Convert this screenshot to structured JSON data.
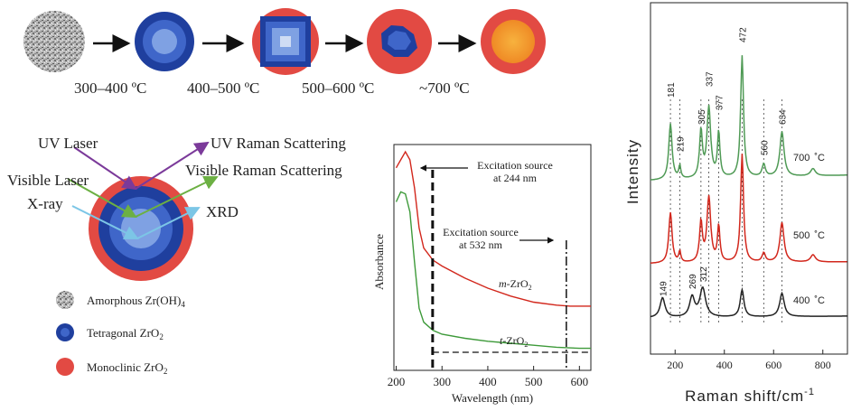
{
  "colors": {
    "tetragonal_dark": "#1f3f9e",
    "tetragonal_mid": "#3f66c9",
    "tetragonal_light": "#7fa1e3",
    "monoclinic": "#e24a43",
    "orange_core": "#f39a2a",
    "uv_arrow": "#7b3a9a",
    "visible_arrow": "#6cb043",
    "xray_arrow": "#7cc6e6",
    "green_series": "#4f9a55",
    "red_series": "#d2271c",
    "black_series": "#222222"
  },
  "phase_sequence": {
    "steps": [
      "300–400 ºC",
      "400–500 ºC",
      "500–600 ºC",
      "~700 ºC"
    ],
    "stages": [
      "amorphous",
      "tetragonal",
      "mixed-square",
      "mixed-blob",
      "monoclinic-core"
    ]
  },
  "probe_diagram": {
    "uv_laser": "UV Laser",
    "uv_raman": "UV Raman Scattering",
    "visible_laser": "Visible Laser",
    "visible_raman": "Visible Raman Scattering",
    "xray": "X-ray",
    "xrd": "XRD"
  },
  "legend": {
    "amorphous": {
      "pre": "Amorphous Zr(OH)",
      "sub": "4"
    },
    "tetragonal": {
      "pre": "Tetragonal ZrO",
      "sub": "2"
    },
    "monoclinic": {
      "pre": "Monoclinic ZrO",
      "sub": "2"
    }
  },
  "chart_data": [
    {
      "type": "line",
      "xlabel": "Wavelength (nm)",
      "ylabel": "Absorbance",
      "xlim": [
        195,
        625
      ],
      "xticks": [
        200,
        300,
        400,
        500,
        600
      ],
      "tick_labels": [
        "200",
        "300",
        "400",
        "500",
        "600"
      ],
      "series": [
        {
          "name": "m-ZrO2",
          "label_pre": "m",
          "label_mid": "-ZrO",
          "label_sub": "2",
          "x": [
            200,
            210,
            220,
            230,
            240,
            250,
            260,
            280,
            300,
            350,
            400,
            450,
            500,
            550,
            580,
            600,
            625
          ],
          "y": [
            0.92,
            0.96,
            1.0,
            0.96,
            0.82,
            0.62,
            0.52,
            0.46,
            0.43,
            0.37,
            0.32,
            0.28,
            0.25,
            0.235,
            0.23,
            0.23,
            0.23
          ]
        },
        {
          "name": "t-ZrO2",
          "label_pre": "t",
          "label_mid": "-ZrO",
          "label_sub": "2",
          "x": [
            200,
            210,
            220,
            230,
            240,
            250,
            260,
            280,
            300,
            350,
            400,
            450,
            500,
            550,
            600,
            625
          ],
          "y": [
            0.75,
            0.8,
            0.79,
            0.7,
            0.45,
            0.22,
            0.15,
            0.11,
            0.09,
            0.07,
            0.055,
            0.045,
            0.035,
            0.025,
            0.02,
            0.02
          ]
        }
      ],
      "annotations": {
        "exc244": {
          "line1": "Excitation source",
          "line2": "at 244 nm",
          "x": 244
        },
        "exc532": {
          "line1": "Excitation source",
          "line2": "at 532 nm",
          "x": 532
        }
      }
    },
    {
      "type": "line",
      "xlabel": "Raman shift/cm",
      "xlabel_sup": "-1",
      "ylabel": "Intensity",
      "xlim": [
        100,
        900
      ],
      "xticks": [
        200,
        400,
        600,
        800
      ],
      "tick_labels": [
        "200",
        "400",
        "600",
        "800"
      ],
      "series": [
        {
          "name": "700 ˚C",
          "temp": "700",
          "unit": "˚C"
        },
        {
          "name": "500 ˚C",
          "temp": "500",
          "unit": "˚C"
        },
        {
          "name": "400 ˚C",
          "temp": "400",
          "unit": "˚C"
        }
      ],
      "peak_labels_700": [
        "181",
        "219",
        "305",
        "337",
        "377",
        "472",
        "560",
        "634"
      ],
      "peak_labels_400": [
        "149",
        "269",
        "312"
      ],
      "vlines": [
        181,
        219,
        305,
        337,
        377,
        472,
        560,
        634
      ]
    }
  ]
}
